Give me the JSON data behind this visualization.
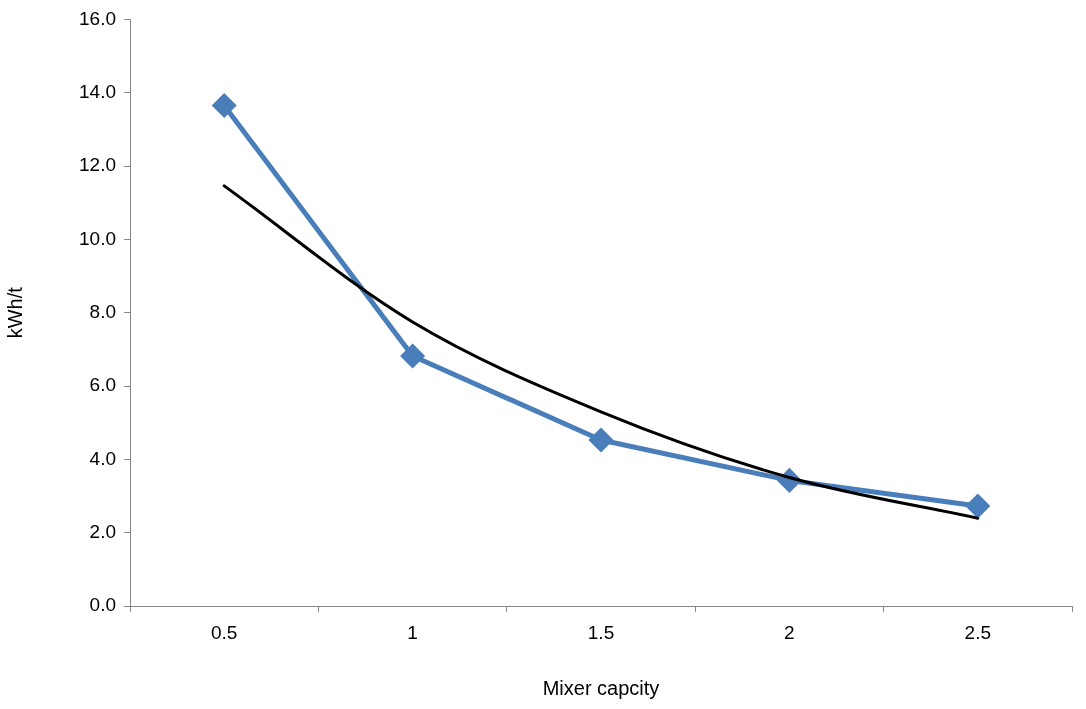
{
  "chart_data": {
    "type": "line",
    "xlabel": "Mixer capcity",
    "ylabel": "kWh/t",
    "categories": [
      "0.5",
      "1",
      "1.5",
      "2",
      "2.5"
    ],
    "series": [
      {
        "color": "#4a7ebb",
        "values": [
          13.65,
          6.82,
          4.53,
          3.43,
          2.73
        ],
        "marker": "diamond"
      },
      {
        "type": "line",
        "color": "#000000",
        "x": [
          "0.5",
          "1",
          "1.5",
          "2",
          "2.5"
        ],
        "values": [
          11.46,
          7.75,
          5.3,
          3.51,
          2.4
        ],
        "marker": "none"
      }
    ],
    "ylim": [
      0,
      16
    ],
    "yticks": [
      {
        "value": 0,
        "label": "0.0"
      },
      {
        "value": 2,
        "label": "2.0"
      },
      {
        "value": 4,
        "label": "4.0"
      },
      {
        "value": 6,
        "label": "6.0"
      },
      {
        "value": 8,
        "label": "8.0"
      },
      {
        "value": 10,
        "label": "10.0"
      },
      {
        "value": 12,
        "label": "12.0"
      },
      {
        "value": 14,
        "label": "14.0"
      },
      {
        "value": 16,
        "label": "16.0"
      }
    ],
    "grid": false,
    "legend": false
  }
}
